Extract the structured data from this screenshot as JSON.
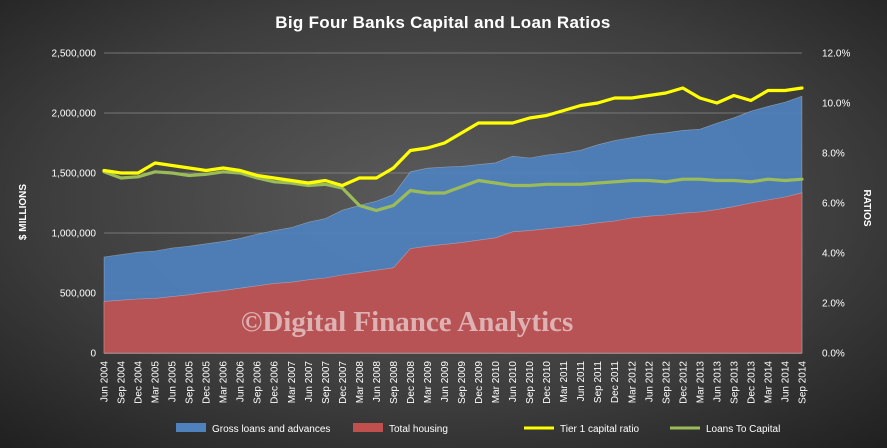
{
  "chart_data": {
    "type": "area",
    "title": "Big Four Banks Capital and Loan Ratios",
    "ylabel": "$ MILLIONS",
    "y2label": "RATIOS",
    "watermark": "©Digital Finance Analytics",
    "ylim": [
      0,
      2500000
    ],
    "y2lim": [
      0,
      12
    ],
    "yticks": [
      "0",
      "500,000",
      "1,000,000",
      "1,500,000",
      "2,000,000",
      "2,500,000"
    ],
    "y2ticks": [
      "0.0%",
      "2.0%",
      "4.0%",
      "6.0%",
      "8.0%",
      "10.0%",
      "12.0%"
    ],
    "x": [
      "Jun 2004",
      "Sep 2004",
      "Dec 2004",
      "Mar 2005",
      "Jun 2005",
      "Sep 2005",
      "Dec 2005",
      "Mar 2006",
      "Jun 2006",
      "Sep 2006",
      "Dec 2006",
      "Mar 2007",
      "Jun 2007",
      "Sep 2007",
      "Dec 2007",
      "Mar 2008",
      "Jun 2008",
      "Sep 2008",
      "Dec 2008",
      "Mar 2009",
      "Jun 2009",
      "Sep 2009",
      "Dec 2009",
      "Mar 2010",
      "Jun 2010",
      "Sep 2010",
      "Dec 2010",
      "Mar 2011",
      "Jun 2011",
      "Sep 2011",
      "Dec 2011",
      "Mar 2012",
      "Jun 2012",
      "Sep 2012",
      "Dec 2012",
      "Mar 2013",
      "Jun 2013",
      "Sep 2013",
      "Dec 2013",
      "Mar 2014",
      "Jun 2014",
      "Sep 2014"
    ],
    "series": [
      {
        "name": "Gross loans and advances",
        "type": "area",
        "axis": "left",
        "color": "#4f81bd",
        "values": [
          800000,
          820000,
          840000,
          850000,
          875000,
          890000,
          910000,
          930000,
          955000,
          990000,
          1020000,
          1045000,
          1090000,
          1120000,
          1190000,
          1230000,
          1265000,
          1320000,
          1510000,
          1540000,
          1550000,
          1555000,
          1570000,
          1585000,
          1640000,
          1625000,
          1650000,
          1665000,
          1690000,
          1735000,
          1770000,
          1795000,
          1820000,
          1835000,
          1855000,
          1865000,
          1915000,
          1960000,
          2015000,
          2055000,
          2090000,
          2140000
        ]
      },
      {
        "name": "Total housing",
        "type": "area",
        "axis": "left",
        "color": "#c0504d",
        "values": [
          430000,
          440000,
          450000,
          455000,
          470000,
          485000,
          505000,
          520000,
          540000,
          560000,
          580000,
          590000,
          610000,
          625000,
          650000,
          670000,
          690000,
          710000,
          870000,
          890000,
          905000,
          920000,
          940000,
          960000,
          1010000,
          1020000,
          1035000,
          1050000,
          1065000,
          1085000,
          1100000,
          1125000,
          1140000,
          1150000,
          1165000,
          1175000,
          1195000,
          1220000,
          1250000,
          1275000,
          1300000,
          1335000
        ]
      },
      {
        "name": "Tier 1 capital ratio",
        "type": "line",
        "axis": "right",
        "color": "#ffff00",
        "values": [
          7.3,
          7.2,
          7.2,
          7.6,
          7.5,
          7.4,
          7.3,
          7.4,
          7.3,
          7.1,
          7.0,
          6.9,
          6.8,
          6.9,
          6.7,
          7.0,
          7.0,
          7.4,
          8.1,
          8.2,
          8.4,
          8.8,
          9.2,
          9.2,
          9.2,
          9.4,
          9.5,
          9.7,
          9.9,
          10.0,
          10.2,
          10.2,
          10.3,
          10.4,
          10.6,
          10.2,
          10.0,
          10.3,
          10.1,
          10.5,
          10.5,
          10.6
        ]
      },
      {
        "name": "Loans To Capital",
        "type": "line",
        "axis": "right",
        "color": "#9bbb59",
        "values": [
          7.25,
          7.0,
          7.05,
          7.25,
          7.2,
          7.1,
          7.15,
          7.25,
          7.2,
          7.0,
          6.85,
          6.8,
          6.7,
          6.75,
          6.6,
          5.9,
          5.7,
          5.9,
          6.5,
          6.4,
          6.4,
          6.65,
          6.9,
          6.8,
          6.7,
          6.7,
          6.75,
          6.75,
          6.75,
          6.8,
          6.85,
          6.9,
          6.9,
          6.85,
          6.95,
          6.95,
          6.9,
          6.9,
          6.85,
          6.95,
          6.9,
          6.95
        ]
      }
    ],
    "grid": true,
    "legend": "bottom"
  }
}
